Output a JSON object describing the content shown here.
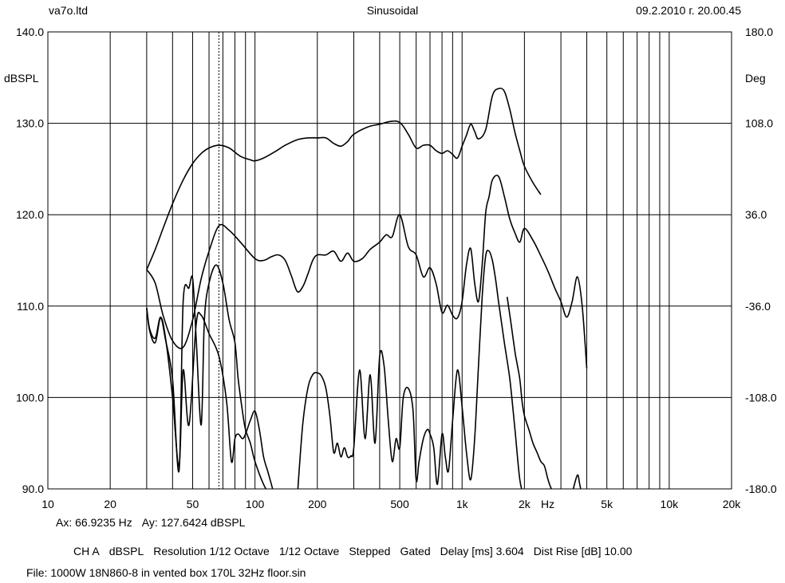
{
  "header": {
    "left": "va7o.ltd",
    "center": "Sinusoidal",
    "right": "09.2.2010 г. 20.00.45"
  },
  "footer": {
    "cursor_x": "Ax: 66.9235 Hz",
    "cursor_y": "Ay: 127.6424 dBSPL",
    "settings": [
      "CH A",
      "dBSPL",
      "Resolution 1/12 Octave",
      "1/12 Octave",
      "Stepped",
      "Gated",
      "Delay [ms] 3.604",
      "Dist Rise [dB] 10.00"
    ],
    "file": "File: 1000W 18N860-8 in vented box 170L 32Hz floor.sin"
  },
  "colors": {
    "background": "#ffffff",
    "grid": "#000000",
    "trace": "#000000"
  },
  "chart_data": {
    "type": "line",
    "x_scale": "log",
    "xlim": [
      10,
      20000
    ],
    "ylim": [
      90,
      140
    ],
    "ylim_right": [
      -180,
      180
    ],
    "ylabel": "dBSPL",
    "ylabel_right": "Deg",
    "x_unit_label": "Hz",
    "grid": true,
    "cursor_x": 66.9235,
    "x_tick_values": [
      10,
      20,
      50,
      100,
      200,
      500,
      1000,
      2000,
      5000,
      10000,
      20000
    ],
    "x_tick_labels": [
      "10",
      "20",
      "50",
      "100",
      "200",
      "500",
      "1k",
      "2k",
      "5k",
      "10k",
      "20k"
    ],
    "y_tick_values": [
      90,
      100,
      110,
      120,
      130,
      140
    ],
    "y_tick_labels": [
      "90.0",
      "100.0",
      "110.0",
      "120.0",
      "130.0",
      "140.0"
    ],
    "y_right_tick_values": [
      -180,
      -108,
      -36,
      36,
      108,
      180
    ],
    "y_right_tick_labels": [
      "-180.0",
      "-108.0",
      "-36.0",
      "36.0",
      "108.0",
      "180.0"
    ],
    "series": [
      {
        "x": [
          30,
          33,
          36,
          40,
          45,
          50,
          55,
          60,
          67,
          75,
          85,
          95,
          100,
          110,
          125,
          140,
          160,
          180,
          200,
          220,
          240,
          260,
          280,
          300,
          350,
          400,
          450,
          500,
          550,
          600,
          650,
          700,
          750,
          800,
          850,
          900,
          950,
          1000,
          1050,
          1100,
          1150,
          1200,
          1300,
          1400,
          1500,
          1600,
          1700,
          1800,
          1900,
          2000,
          2200,
          2400
        ],
        "y": [
          114.0,
          116.2,
          118.5,
          121.2,
          123.8,
          125.6,
          126.7,
          127.3,
          127.6,
          127.3,
          126.4,
          126.0,
          125.9,
          126.2,
          126.9,
          127.6,
          128.2,
          128.4,
          128.4,
          128.4,
          127.8,
          127.5,
          128.0,
          128.8,
          129.6,
          129.9,
          130.2,
          130.1,
          128.8,
          127.3,
          127.6,
          127.6,
          127.0,
          126.7,
          127.0,
          126.6,
          126.2,
          127.5,
          128.7,
          129.9,
          129.1,
          128.3,
          129.3,
          133.0,
          133.8,
          133.5,
          131.5,
          129.0,
          127.0,
          125.3,
          123.5,
          122.2
        ]
      },
      {
        "x": [
          30,
          33,
          36,
          40,
          45,
          50,
          55,
          60,
          67,
          75,
          85,
          100,
          110,
          120,
          130,
          140,
          150,
          160,
          170,
          180,
          190,
          200,
          220,
          240,
          260,
          280,
          300,
          330,
          360,
          400,
          430,
          460,
          500,
          550,
          600,
          650,
          700,
          750,
          800,
          850,
          900,
          950,
          1000,
          1050,
          1100,
          1150,
          1200,
          1250,
          1300,
          1350,
          1400,
          1500,
          1600,
          1700,
          1800,
          1900,
          2000,
          2200,
          2400,
          2600,
          2800,
          3000,
          3200,
          3400,
          3600,
          3800,
          4000
        ],
        "y": [
          114.0,
          112.5,
          109.0,
          106.2,
          105.5,
          108.5,
          113.0,
          116.0,
          118.8,
          118.3,
          117.0,
          115.2,
          115.0,
          115.4,
          115.6,
          115.0,
          113.3,
          111.6,
          112.1,
          113.5,
          115.0,
          115.6,
          115.6,
          116.0,
          114.9,
          115.8,
          114.9,
          115.2,
          116.2,
          117.0,
          117.8,
          117.6,
          120.0,
          116.5,
          115.6,
          113.2,
          114.2,
          112.4,
          109.3,
          110.1,
          109.0,
          108.7,
          110.5,
          114.5,
          116.3,
          112.5,
          110.5,
          114.5,
          120.2,
          122.0,
          123.8,
          124.2,
          122.0,
          119.5,
          118.0,
          117.0,
          118.5,
          117.2,
          115.5,
          113.8,
          112.0,
          110.5,
          108.8,
          110.5,
          113.2,
          110.0,
          103.2
        ]
      },
      {
        "x": [
          30,
          31,
          33,
          35,
          37,
          40,
          43,
          45,
          48,
          50,
          52,
          55,
          57,
          60,
          65,
          70,
          75,
          80,
          83,
          87,
          90,
          95,
          100,
          110,
          120
        ],
        "y": [
          109.8,
          107.3,
          106.0,
          108.7,
          106.3,
          102.0,
          92.0,
          110.5,
          112.0,
          113.0,
          106.5,
          97.0,
          108.5,
          112.5,
          114.5,
          112.5,
          108.5,
          106.0,
          102.0,
          98.5,
          96.5,
          95.0,
          93.0,
          90.5,
          89.0
        ]
      },
      {
        "x": [
          30,
          31,
          33,
          35,
          37,
          40,
          43,
          45,
          48,
          52,
          55,
          60,
          67,
          73,
          77,
          80,
          83,
          87,
          90,
          95,
          100,
          105,
          110,
          115,
          120,
          125
        ],
        "y": [
          109.8,
          107.5,
          106.5,
          108.8,
          106.5,
          100.0,
          92.5,
          103.0,
          97.0,
          108.0,
          109.0,
          107.0,
          104.5,
          99.5,
          93.0,
          95.5,
          96.0,
          95.5,
          96.0,
          97.5,
          98.5,
          96.5,
          93.5,
          92.0,
          90.5,
          89.0
        ]
      },
      {
        "x": [
          160,
          170,
          180,
          190,
          200,
          210,
          220,
          230,
          240,
          250,
          260,
          270,
          280,
          290,
          300,
          320,
          340,
          360,
          380,
          400,
          420,
          440,
          460,
          480,
          500,
          520,
          550,
          580,
          600,
          620,
          650,
          680,
          700,
          730,
          760,
          800,
          830,
          860,
          900,
          950,
          1000,
          1050,
          1100,
          1150,
          1200,
          1250,
          1300,
          1350,
          1400,
          1450,
          1500,
          1600,
          1700,
          1800,
          1900,
          2000
        ],
        "y": [
          89.0,
          97.0,
          101.0,
          102.5,
          102.7,
          102.3,
          101.0,
          98.0,
          94.0,
          95.0,
          93.5,
          94.5,
          93.5,
          93.6,
          94.5,
          103.0,
          95.5,
          102.5,
          95.0,
          104.5,
          103.5,
          97.5,
          93.0,
          95.5,
          94.5,
          100.0,
          101.0,
          98.5,
          91.0,
          93.0,
          95.5,
          96.5,
          96.0,
          94.5,
          90.5,
          96.0,
          93.5,
          92.0,
          97.5,
          103.0,
          99.0,
          94.0,
          91.0,
          95.5,
          103.5,
          111.0,
          115.5,
          116.0,
          115.0,
          113.0,
          110.5,
          106.0,
          102.0,
          96.5,
          91.0,
          89.0
        ]
      },
      {
        "x": [
          1650,
          1700,
          1750,
          1800,
          1850,
          1900,
          1950,
          2000,
          2100,
          2200,
          2300,
          2400,
          2500,
          2600,
          2700,
          2800,
          3000,
          3200,
          3400,
          3600,
          3700,
          3800
        ],
        "y": [
          111.0,
          109.0,
          107.0,
          105.0,
          103.5,
          102.0,
          99.5,
          98.0,
          96.5,
          95.0,
          94.0,
          93.0,
          92.5,
          91.0,
          90.0,
          89.5,
          null,
          null,
          89.5,
          91.5,
          90.5,
          89.0
        ]
      }
    ]
  }
}
